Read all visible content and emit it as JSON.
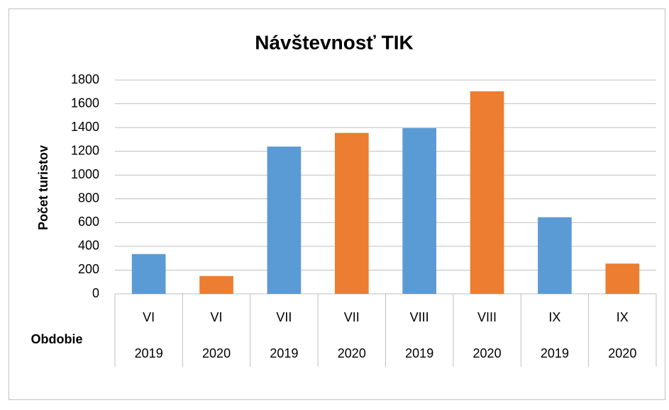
{
  "chart_data": {
    "type": "bar",
    "title": "Návštevnosť  TIK",
    "y_label": "Počet  turistov",
    "x_label": "Obdobie",
    "categories": [
      "VI",
      "VI",
      "VII",
      "VII",
      "VIII",
      "VIII",
      "IX",
      "IX"
    ],
    "subcategories": [
      "2019",
      "2020",
      "2019",
      "2020",
      "2019",
      "2020",
      "2019",
      "2020"
    ],
    "values": [
      335,
      150,
      1240,
      1355,
      1395,
      1705,
      645,
      255
    ],
    "colors": [
      "#5b9bd5",
      "#ed7d31",
      "#5b9bd5",
      "#ed7d31",
      "#5b9bd5",
      "#ed7d31",
      "#5b9bd5",
      "#ed7d31"
    ],
    "ylim": [
      0,
      1800
    ],
    "yticks": [
      0,
      200,
      400,
      600,
      800,
      1000,
      1200,
      1400,
      1600,
      1800
    ],
    "grid": true
  }
}
